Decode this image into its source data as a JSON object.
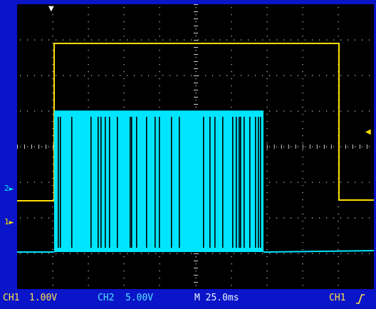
{
  "screen": {
    "divisions_x": 10,
    "divisions_y": 8
  },
  "channels": [
    {
      "name": "CH1",
      "color": "#ffe000",
      "ground_marker": "1"
    },
    {
      "name": "CH2",
      "color": "#00e5ff",
      "ground_marker": "2"
    }
  ],
  "status": {
    "ch1_label": "CH1",
    "ch1_scale": "1.00V",
    "ch2_label": "CH2",
    "ch2_scale": "5.00V",
    "timebase": "M 25.0ms",
    "trigger_source": "CH1",
    "trigger_slope_icon": "rising-edge-icon"
  },
  "colors": {
    "background": "#0a14c8",
    "screen": "#000000",
    "grid": "#cfcfcf",
    "ch1": "#ffe000",
    "ch2": "#00e5ff"
  }
}
